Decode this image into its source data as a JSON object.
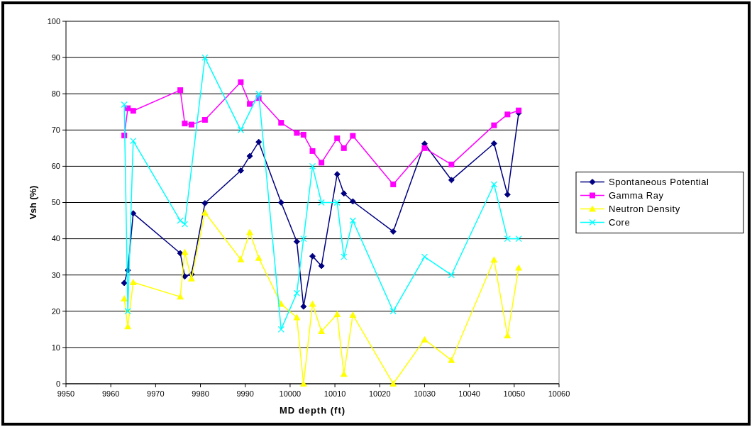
{
  "chart_data": {
    "type": "line",
    "xlabel": "MD depth (ft)",
    "ylabel": "Vsh (%)",
    "xlim": [
      9950,
      10060
    ],
    "xticks": [
      9950,
      9960,
      9970,
      9980,
      9990,
      10000,
      10010,
      10020,
      10030,
      10040,
      10050,
      10060
    ],
    "ylim": [
      0,
      100
    ],
    "yticks": [
      0,
      10,
      20,
      30,
      40,
      50,
      60,
      70,
      80,
      90,
      100
    ],
    "grid": "y",
    "legend": "right",
    "x": [
      9963,
      9963.8,
      9965,
      9975.5,
      9976.5,
      9978,
      9981,
      9989,
      9991,
      9993,
      9998,
      10001.5,
      10003,
      10005,
      10007,
      10010.5,
      10012,
      10014,
      10023,
      10030,
      10036,
      10045.5,
      10048.5,
      10051
    ],
    "series": [
      {
        "name": "Spontaneous Potential",
        "color": "#000080",
        "marker": "diamond",
        "values": [
          27.8,
          31.3,
          47,
          36,
          29.6,
          30.2,
          49.8,
          58.8,
          62.8,
          66.7,
          50,
          39.2,
          21.3,
          35.2,
          32.5,
          57.8,
          52.5,
          50.3,
          42,
          66.2,
          56.2,
          66.3,
          52.2,
          74.7
        ]
      },
      {
        "name": "Gamma Ray",
        "color": "#ff00ff",
        "marker": "square",
        "values": [
          68.5,
          76,
          75.3,
          81,
          71.8,
          71.5,
          72.8,
          83.2,
          77.2,
          78.8,
          72,
          69.2,
          68.7,
          64.2,
          61,
          67.7,
          65,
          68.4,
          55,
          65,
          60.5,
          71.3,
          74.3,
          75.4
        ]
      },
      {
        "name": "Neutron Density",
        "color": "#ffff00",
        "marker": "triangle",
        "values": [
          23.5,
          15.8,
          28,
          24,
          36.3,
          29,
          47.2,
          34.3,
          41.8,
          34.7,
          22,
          18.3,
          0,
          22,
          14.5,
          19.2,
          2.7,
          19,
          0,
          12.2,
          6.5,
          34.2,
          13.3,
          32
        ]
      },
      {
        "name": "Core",
        "color": "#00ffff",
        "marker": "cross",
        "x": [
          9963,
          9963.8,
          9965,
          9975.5,
          9976.5,
          9981,
          9989,
          9993,
          9998,
          10001.5,
          10003,
          10005,
          10007,
          10010.5,
          10012,
          10014,
          10023,
          10030,
          10036,
          10045.5,
          10048.5,
          10051
        ],
        "values": [
          77,
          20,
          67,
          45,
          44,
          90,
          70,
          80,
          15,
          25,
          40,
          60,
          50,
          50,
          35,
          45,
          20,
          35,
          30,
          55,
          40,
          40
        ]
      }
    ]
  }
}
